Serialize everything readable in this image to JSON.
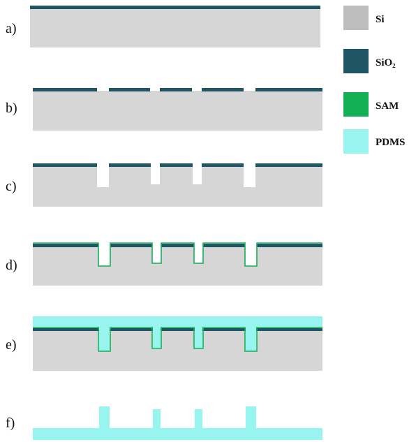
{
  "colors": {
    "si": "#d6d6d6",
    "sio2": "#1f5564",
    "sam": "#13b055",
    "pdms": "#97f4ef",
    "background": "#ffffff"
  },
  "legend": {
    "items": [
      {
        "key": "si",
        "label": "Si"
      },
      {
        "key": "sio2",
        "label": "SiO₂"
      },
      {
        "key": "sam",
        "label": "SAM"
      },
      {
        "key": "pdms",
        "label": "PDMS"
      }
    ]
  },
  "steps": [
    {
      "label": "a)"
    },
    {
      "label": "b)"
    },
    {
      "label": "c)"
    },
    {
      "label": "d)"
    },
    {
      "label": "e)"
    },
    {
      "label": "f)"
    }
  ]
}
